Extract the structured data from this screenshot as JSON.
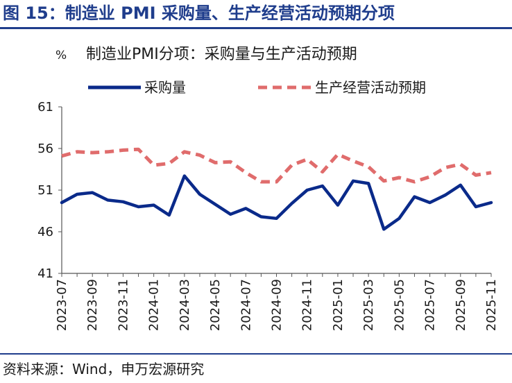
{
  "figure_title": "图 15：制造业 PMI 采购量、生产经营活动预期分项",
  "source": "资料来源：Wind，申万宏源研究",
  "chart_data": {
    "type": "line",
    "title": "制造业PMI分项：采购量与生产活动预期",
    "unit": "%",
    "ylim": [
      41,
      61
    ],
    "yticks": [
      41,
      46,
      51,
      56,
      61
    ],
    "xticks": [
      "2023-07",
      "2023-09",
      "2023-11",
      "2024-01",
      "2024-03",
      "2024-05",
      "2024-07",
      "2024-09",
      "2024-11",
      "2025-01",
      "2025-03",
      "2025-05",
      "2025-07",
      "2025-09",
      "2025-11"
    ],
    "x": [
      "2023-07",
      "2023-08",
      "2023-09",
      "2023-10",
      "2023-11",
      "2023-12",
      "2024-01",
      "2024-02",
      "2024-03",
      "2024-04",
      "2024-05",
      "2024-06",
      "2024-07",
      "2024-08",
      "2024-09",
      "2024-10",
      "2024-11",
      "2024-12",
      "2025-01",
      "2025-02",
      "2025-03",
      "2025-04",
      "2025-05",
      "2025-06",
      "2025-07",
      "2025-08",
      "2025-09",
      "2025-10",
      "2025-11"
    ],
    "grid": false,
    "legend_position": "top",
    "series": [
      {
        "name": "采购量",
        "color": "#0a2a8a",
        "style": "solid",
        "values": [
          49.5,
          50.5,
          50.7,
          49.8,
          49.6,
          49.0,
          49.2,
          48.0,
          52.7,
          50.5,
          49.3,
          48.1,
          48.8,
          47.8,
          47.6,
          49.4,
          51.0,
          51.5,
          49.2,
          52.1,
          51.8,
          46.3,
          47.6,
          50.2,
          49.5,
          50.4,
          51.6,
          49.0,
          49.5
        ]
      },
      {
        "name": "生产经营活动预期",
        "color": "#e06c6c",
        "style": "dashed",
        "values": [
          55.1,
          55.6,
          55.5,
          55.6,
          55.8,
          55.9,
          54.0,
          54.2,
          55.6,
          55.2,
          54.3,
          54.4,
          53.1,
          52.0,
          52.0,
          54.0,
          54.7,
          53.2,
          55.3,
          54.5,
          53.8,
          52.1,
          52.5,
          52.0,
          52.6,
          53.7,
          54.1,
          52.8,
          53.1
        ]
      }
    ]
  }
}
